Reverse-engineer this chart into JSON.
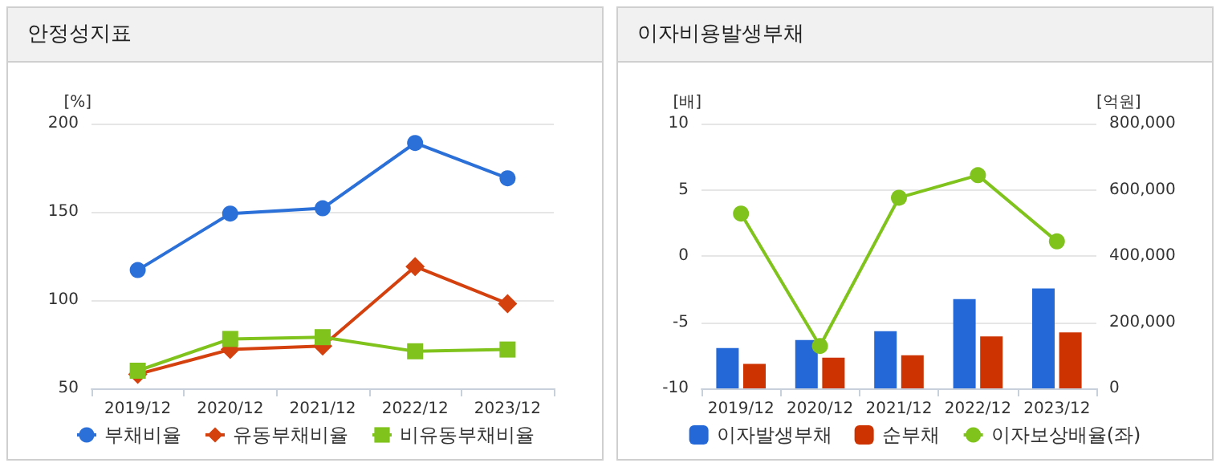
{
  "chart_data": [
    {
      "type": "line",
      "title": "안정성지표",
      "ylabel": "[%]",
      "categories": [
        "2019/12",
        "2020/12",
        "2021/12",
        "2022/12",
        "2023/12"
      ],
      "ylim": [
        50,
        200
      ],
      "yticks": [
        50,
        100,
        150,
        200
      ],
      "grid": "y",
      "legend": "bottom",
      "series": [
        {
          "name": "부채비율",
          "color": "#2b6fd8",
          "marker": "circle",
          "values": [
            117,
            149,
            152,
            189,
            169
          ]
        },
        {
          "name": "유동부채비율",
          "color": "#d5400f",
          "marker": "diamond",
          "values": [
            58,
            72,
            74,
            119,
            98
          ]
        },
        {
          "name": "비유동부채비율",
          "color": "#7fc31c",
          "marker": "square",
          "values": [
            60,
            78,
            79,
            71,
            72
          ]
        }
      ]
    },
    {
      "type": "bar",
      "title": "이자비용발생부채",
      "ylabel": "[배]",
      "y2label": "[억원]",
      "categories": [
        "2019/12",
        "2020/12",
        "2021/12",
        "2022/12",
        "2023/12"
      ],
      "ylim": [
        -10,
        10
      ],
      "yticks": [
        -10,
        -5,
        0,
        5,
        10
      ],
      "y2lim": [
        0,
        800000
      ],
      "y2ticks": [
        0,
        {
          "value": 200000,
          "label": "200,000"
        },
        {
          "value": 400000,
          "label": "400,000"
        },
        {
          "value": 600000,
          "label": "600,000"
        },
        {
          "value": 800000,
          "label": "800,000"
        }
      ],
      "grid": "y",
      "legend": "bottom",
      "series": [
        {
          "name": "이자발생부채",
          "color": "#2468d8",
          "axis": "y2",
          "values": [
            122000,
            146000,
            173000,
            270000,
            302000
          ]
        },
        {
          "name": "순부채",
          "color": "#cc3300",
          "axis": "y2",
          "values": [
            74000,
            93000,
            100000,
            157000,
            169000
          ]
        },
        {
          "name": "이자보상배율(좌)",
          "type": "line",
          "color": "#7fc31c",
          "marker": "circle",
          "axis": "y",
          "values": [
            3.2,
            -6.8,
            4.4,
            6.1,
            1.1
          ]
        }
      ]
    }
  ]
}
